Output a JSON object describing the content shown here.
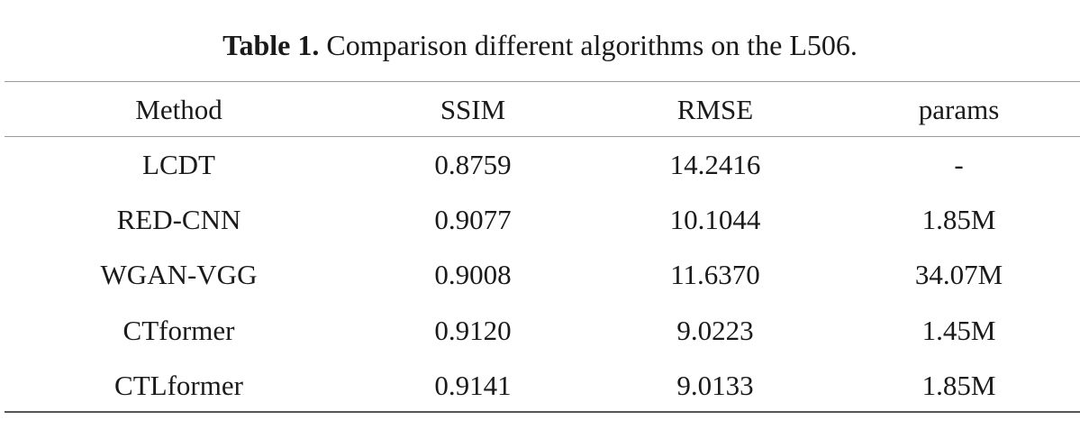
{
  "caption": {
    "label": "Table 1.",
    "text": " Comparison different algorithms on the L506."
  },
  "table": {
    "columns": [
      "Method",
      "SSIM",
      "RMSE",
      "params"
    ],
    "rows": [
      [
        "LCDT",
        "0.8759",
        "14.2416",
        "-"
      ],
      [
        "RED-CNN",
        "0.9077",
        "10.1044",
        "1.85M"
      ],
      [
        "WGAN-VGG",
        "0.9008",
        "11.6370",
        "34.07M"
      ],
      [
        "CTformer",
        "0.9120",
        "9.0223",
        "1.45M"
      ],
      [
        "CTLformer",
        "0.9141",
        "9.0133",
        "1.85M"
      ]
    ]
  }
}
